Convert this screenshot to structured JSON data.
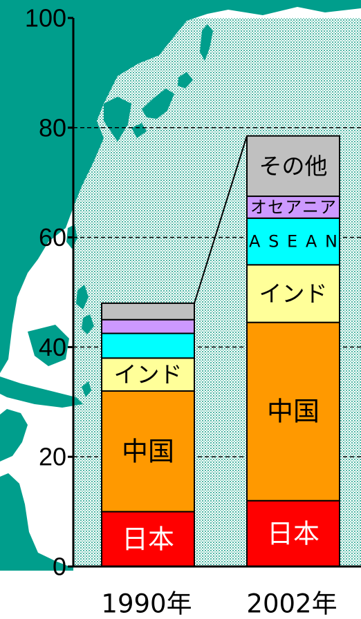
{
  "chart_data": {
    "type": "bar",
    "stacked": true,
    "categories": [
      "1990年",
      "2002年"
    ],
    "series": [
      {
        "name": "日本",
        "color": "#ff0000",
        "text_color": "#ffffff",
        "values": [
          10,
          12
        ]
      },
      {
        "name": "中国",
        "color": "#ff9900",
        "text_color": "#000000",
        "values": [
          22,
          32.5
        ]
      },
      {
        "name": "インド",
        "color": "#ffff99",
        "text_color": "#000000",
        "values": [
          6,
          10.5
        ]
      },
      {
        "name": "ASEAN",
        "color": "#00ffff",
        "text_color": "#000000",
        "values": [
          4.5,
          8.5
        ]
      },
      {
        "name": "オセアニア",
        "color": "#cc99ff",
        "text_color": "#000000",
        "values": [
          2.5,
          4
        ]
      },
      {
        "name": "その他",
        "color": "#c0c0c0",
        "text_color": "#000000",
        "values": [
          3,
          11
        ]
      }
    ],
    "segment_labels": [
      [
        "日本",
        "中国",
        "インド",
        "",
        "",
        ""
      ],
      [
        "日本",
        "中国",
        "インド",
        "ASEAN",
        "オセアニア",
        "その他"
      ]
    ],
    "yticks": [
      "0",
      "20",
      "40",
      "60",
      "80",
      "100"
    ],
    "ylim": [
      0,
      100
    ],
    "grid": true,
    "background_colors": {
      "sea": "#bfe8df",
      "land": "#009e8c"
    }
  }
}
